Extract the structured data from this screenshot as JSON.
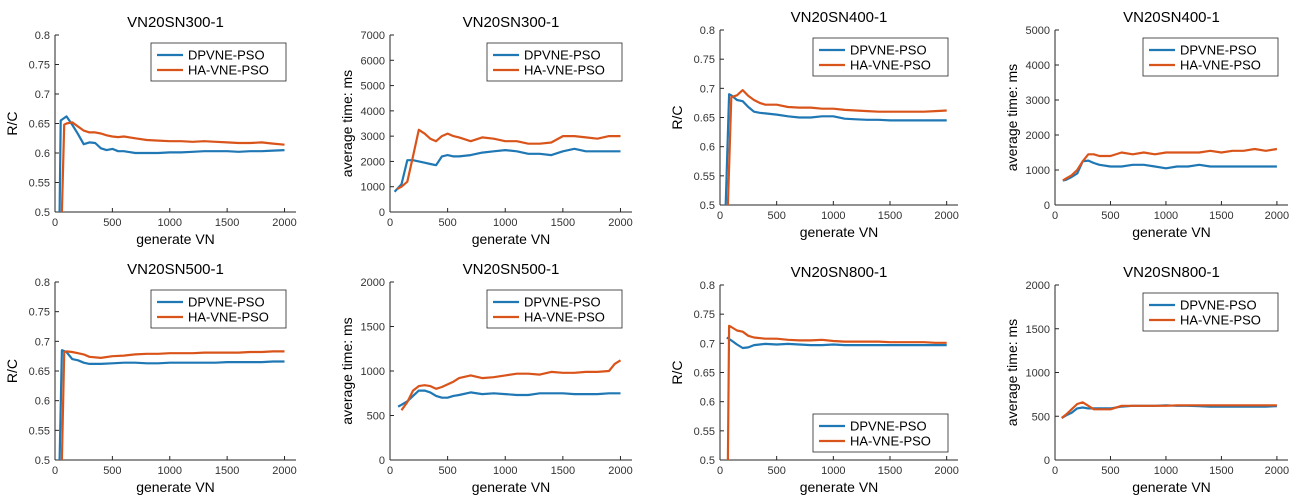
{
  "colors": {
    "DPVNE-PSO": "#1f77b4",
    "HA-VNE-PSO": "#d9541a"
  },
  "chart_data": [
    {
      "type": "line",
      "title": "VN20SN300-1",
      "xlabel": "generate VN",
      "ylabel": "R/C",
      "xlim": [
        0,
        2100
      ],
      "ylim": [
        0.5,
        0.8
      ],
      "xticks": [
        0,
        500,
        1000,
        1500,
        2000
      ],
      "yticks": [
        0.5,
        0.55,
        0.6,
        0.65,
        0.7,
        0.75,
        0.8
      ],
      "legend": "top-right",
      "series": [
        {
          "name": "DPVNE-PSO",
          "x": [
            40,
            50,
            100,
            150,
            200,
            250,
            300,
            350,
            400,
            450,
            500,
            550,
            600,
            700,
            800,
            900,
            1000,
            1100,
            1200,
            1300,
            1400,
            1500,
            1600,
            1700,
            1800,
            1900,
            2000
          ],
          "y": [
            0.5,
            0.655,
            0.662,
            0.648,
            0.632,
            0.615,
            0.618,
            0.617,
            0.608,
            0.605,
            0.607,
            0.603,
            0.603,
            0.6,
            0.6,
            0.6,
            0.601,
            0.601,
            0.602,
            0.603,
            0.603,
            0.603,
            0.602,
            0.603,
            0.603,
            0.604,
            0.605
          ]
        },
        {
          "name": "HA-VNE-PSO",
          "x": [
            60,
            80,
            100,
            150,
            200,
            250,
            300,
            350,
            400,
            450,
            500,
            550,
            600,
            700,
            800,
            900,
            1000,
            1100,
            1200,
            1300,
            1400,
            1500,
            1600,
            1700,
            1800,
            1900,
            2000
          ],
          "y": [
            0.5,
            0.648,
            0.65,
            0.652,
            0.645,
            0.638,
            0.635,
            0.635,
            0.633,
            0.63,
            0.628,
            0.627,
            0.628,
            0.625,
            0.622,
            0.621,
            0.62,
            0.62,
            0.619,
            0.62,
            0.619,
            0.618,
            0.617,
            0.617,
            0.618,
            0.616,
            0.614
          ]
        }
      ]
    },
    {
      "type": "line",
      "title": "VN20SN300-1",
      "xlabel": "generate VN",
      "ylabel": "average time: ms",
      "xlim": [
        0,
        2100
      ],
      "ylim": [
        0,
        7000
      ],
      "xticks": [
        0,
        500,
        1000,
        1500,
        2000
      ],
      "yticks": [
        0,
        1000,
        2000,
        3000,
        4000,
        5000,
        6000,
        7000
      ],
      "legend": "top-right",
      "series": [
        {
          "name": "DPVNE-PSO",
          "x": [
            40,
            100,
            150,
            200,
            250,
            300,
            350,
            400,
            450,
            500,
            550,
            600,
            700,
            800,
            900,
            1000,
            1100,
            1200,
            1300,
            1400,
            1500,
            1600,
            1700,
            1800,
            1900,
            2000
          ],
          "y": [
            800,
            1100,
            2050,
            2050,
            2000,
            1950,
            1900,
            1850,
            2200,
            2250,
            2200,
            2200,
            2250,
            2350,
            2400,
            2450,
            2400,
            2300,
            2300,
            2250,
            2400,
            2500,
            2400,
            2400,
            2400,
            2400
          ]
        },
        {
          "name": "HA-VNE-PSO",
          "x": [
            60,
            100,
            150,
            200,
            250,
            300,
            350,
            400,
            450,
            500,
            550,
            600,
            700,
            800,
            900,
            1000,
            1100,
            1200,
            1300,
            1400,
            1500,
            1600,
            1700,
            1800,
            1900,
            2000
          ],
          "y": [
            900,
            1000,
            1200,
            2200,
            3250,
            3100,
            2900,
            2800,
            3000,
            3100,
            3000,
            2950,
            2800,
            2950,
            2900,
            2800,
            2800,
            2700,
            2700,
            2750,
            3000,
            3000,
            2950,
            2900,
            3000,
            3000
          ]
        }
      ]
    },
    {
      "type": "line",
      "title": "VN20SN400-1",
      "xlabel": "generate VN",
      "ylabel": "R/C",
      "xlim": [
        0,
        2100
      ],
      "ylim": [
        0.5,
        0.8
      ],
      "xticks": [
        0,
        500,
        1000,
        1500,
        2000
      ],
      "yticks": [
        0.5,
        0.55,
        0.6,
        0.65,
        0.7,
        0.75,
        0.8
      ],
      "legend": "top-right",
      "series": [
        {
          "name": "DPVNE-PSO",
          "x": [
            50,
            80,
            100,
            150,
            200,
            250,
            300,
            350,
            400,
            500,
            600,
            700,
            800,
            900,
            1000,
            1100,
            1200,
            1300,
            1400,
            1500,
            1600,
            1700,
            1800,
            1900,
            2000
          ],
          "y": [
            0.5,
            0.69,
            0.688,
            0.68,
            0.678,
            0.668,
            0.66,
            0.658,
            0.657,
            0.655,
            0.652,
            0.65,
            0.65,
            0.652,
            0.652,
            0.648,
            0.647,
            0.646,
            0.646,
            0.645,
            0.645,
            0.645,
            0.645,
            0.645,
            0.645
          ]
        },
        {
          "name": "HA-VNE-PSO",
          "x": [
            70,
            100,
            150,
            200,
            250,
            300,
            350,
            400,
            500,
            600,
            700,
            800,
            900,
            1000,
            1100,
            1200,
            1300,
            1400,
            1500,
            1600,
            1700,
            1800,
            1900,
            2000
          ],
          "y": [
            0.5,
            0.685,
            0.688,
            0.697,
            0.687,
            0.68,
            0.675,
            0.672,
            0.672,
            0.668,
            0.667,
            0.667,
            0.665,
            0.665,
            0.663,
            0.662,
            0.661,
            0.66,
            0.66,
            0.66,
            0.66,
            0.66,
            0.661,
            0.662
          ]
        }
      ]
    },
    {
      "type": "line",
      "title": "VN20SN400-1",
      "xlabel": "generate VN",
      "ylabel": "average time: ms",
      "xlim": [
        0,
        2100
      ],
      "ylim": [
        0,
        5000
      ],
      "xticks": [
        0,
        500,
        1000,
        1500,
        2000
      ],
      "yticks": [
        0,
        1000,
        2000,
        3000,
        4000,
        5000
      ],
      "legend": "top-right",
      "series": [
        {
          "name": "DPVNE-PSO",
          "x": [
            70,
            100,
            150,
            200,
            250,
            300,
            350,
            400,
            500,
            600,
            700,
            800,
            900,
            1000,
            1100,
            1200,
            1300,
            1400,
            1500,
            1600,
            1700,
            1800,
            1900,
            2000
          ],
          "y": [
            700,
            720,
            800,
            900,
            1250,
            1270,
            1200,
            1150,
            1100,
            1100,
            1150,
            1150,
            1100,
            1050,
            1100,
            1100,
            1150,
            1100,
            1100,
            1100,
            1100,
            1100,
            1100,
            1100
          ]
        },
        {
          "name": "HA-VNE-PSO",
          "x": [
            70,
            100,
            150,
            200,
            250,
            300,
            350,
            400,
            500,
            600,
            700,
            800,
            900,
            1000,
            1100,
            1200,
            1300,
            1400,
            1500,
            1600,
            1700,
            1800,
            1900,
            2000
          ],
          "y": [
            700,
            760,
            850,
            1000,
            1250,
            1450,
            1450,
            1400,
            1400,
            1500,
            1450,
            1500,
            1450,
            1500,
            1500,
            1500,
            1500,
            1550,
            1500,
            1550,
            1550,
            1600,
            1550,
            1600
          ]
        }
      ]
    },
    {
      "type": "line",
      "title": "VN20SN500-1",
      "xlabel": "generate VN",
      "ylabel": "R/C",
      "xlim": [
        0,
        2100
      ],
      "ylim": [
        0.5,
        0.8
      ],
      "xticks": [
        0,
        500,
        1000,
        1500,
        2000
      ],
      "yticks": [
        0.5,
        0.55,
        0.6,
        0.65,
        0.7,
        0.75,
        0.8
      ],
      "legend": "top-right",
      "series": [
        {
          "name": "DPVNE-PSO",
          "x": [
            40,
            60,
            100,
            150,
            200,
            250,
            300,
            400,
            500,
            600,
            700,
            800,
            900,
            1000,
            1100,
            1200,
            1300,
            1400,
            1500,
            1600,
            1700,
            1800,
            1900,
            2000
          ],
          "y": [
            0.5,
            0.685,
            0.682,
            0.67,
            0.668,
            0.664,
            0.662,
            0.662,
            0.663,
            0.664,
            0.664,
            0.663,
            0.663,
            0.664,
            0.664,
            0.664,
            0.664,
            0.664,
            0.665,
            0.665,
            0.665,
            0.665,
            0.666,
            0.666
          ]
        },
        {
          "name": "HA-VNE-PSO",
          "x": [
            60,
            80,
            100,
            150,
            200,
            250,
            300,
            400,
            500,
            600,
            700,
            800,
            900,
            1000,
            1100,
            1200,
            1300,
            1400,
            1500,
            1600,
            1700,
            1800,
            1900,
            2000
          ],
          "y": [
            0.5,
            0.682,
            0.683,
            0.682,
            0.68,
            0.678,
            0.674,
            0.672,
            0.675,
            0.676,
            0.678,
            0.679,
            0.679,
            0.68,
            0.68,
            0.68,
            0.681,
            0.681,
            0.681,
            0.681,
            0.682,
            0.682,
            0.683,
            0.683
          ]
        }
      ]
    },
    {
      "type": "line",
      "title": "VN20SN500-1",
      "xlabel": "generate VN",
      "ylabel": "average time: ms",
      "xlim": [
        0,
        2100
      ],
      "ylim": [
        0,
        2000
      ],
      "xticks": [
        0,
        500,
        1000,
        1500,
        2000
      ],
      "yticks": [
        0,
        500,
        1000,
        1500,
        2000
      ],
      "legend": "top-right",
      "series": [
        {
          "name": "DPVNE-PSO",
          "x": [
            70,
            100,
            150,
            200,
            250,
            300,
            350,
            400,
            450,
            500,
            550,
            600,
            700,
            800,
            900,
            1000,
            1100,
            1200,
            1300,
            1400,
            1500,
            1600,
            1700,
            1800,
            1900,
            2000
          ],
          "y": [
            600,
            620,
            660,
            720,
            780,
            780,
            760,
            720,
            700,
            700,
            720,
            730,
            760,
            740,
            750,
            740,
            730,
            730,
            750,
            750,
            750,
            740,
            740,
            740,
            750,
            750
          ]
        },
        {
          "name": "HA-VNE-PSO",
          "x": [
            100,
            150,
            200,
            250,
            300,
            350,
            400,
            450,
            500,
            550,
            600,
            700,
            800,
            900,
            1000,
            1100,
            1200,
            1300,
            1400,
            1500,
            1600,
            1700,
            1800,
            1900,
            1950,
            2000
          ],
          "y": [
            560,
            650,
            780,
            830,
            840,
            830,
            800,
            820,
            850,
            880,
            920,
            950,
            920,
            930,
            950,
            970,
            970,
            960,
            990,
            980,
            980,
            990,
            990,
            1000,
            1080,
            1120
          ]
        }
      ]
    },
    {
      "type": "line",
      "title": "VN20SN800-1",
      "xlabel": "generate VN",
      "ylabel": "R/C",
      "xlim": [
        0,
        2100
      ],
      "ylim": [
        0.5,
        0.8
      ],
      "xticks": [
        0,
        500,
        1000,
        1500,
        2000
      ],
      "yticks": [
        0.5,
        0.55,
        0.6,
        0.65,
        0.7,
        0.75,
        0.8
      ],
      "legend": "bottom-right",
      "series": [
        {
          "name": "DPVNE-PSO",
          "x": [
            60,
            100,
            150,
            200,
            250,
            300,
            350,
            400,
            500,
            600,
            700,
            800,
            900,
            1000,
            1100,
            1200,
            1300,
            1400,
            1500,
            1600,
            1700,
            1800,
            1900,
            2000
          ],
          "y": [
            0.71,
            0.705,
            0.698,
            0.692,
            0.693,
            0.697,
            0.698,
            0.699,
            0.698,
            0.699,
            0.698,
            0.697,
            0.697,
            0.698,
            0.697,
            0.697,
            0.697,
            0.697,
            0.697,
            0.697,
            0.697,
            0.697,
            0.697,
            0.697
          ]
        },
        {
          "name": "HA-VNE-PSO",
          "x": [
            70,
            80,
            100,
            150,
            200,
            250,
            300,
            400,
            500,
            600,
            700,
            800,
            900,
            1000,
            1100,
            1200,
            1300,
            1400,
            1500,
            1600,
            1700,
            1800,
            1900,
            2000
          ],
          "y": [
            0.5,
            0.73,
            0.728,
            0.722,
            0.72,
            0.713,
            0.71,
            0.708,
            0.708,
            0.706,
            0.705,
            0.705,
            0.706,
            0.704,
            0.703,
            0.703,
            0.703,
            0.703,
            0.702,
            0.702,
            0.702,
            0.702,
            0.701,
            0.701
          ]
        }
      ]
    },
    {
      "type": "line",
      "title": "VN20SN800-1",
      "xlabel": "generate VN",
      "ylabel": "average time: ms",
      "xlim": [
        0,
        2100
      ],
      "ylim": [
        0,
        2000
      ],
      "xticks": [
        0,
        500,
        1000,
        1500,
        2000
      ],
      "yticks": [
        0,
        500,
        1000,
        1500,
        2000
      ],
      "legend": "top-right",
      "series": [
        {
          "name": "DPVNE-PSO",
          "x": [
            60,
            100,
            150,
            200,
            250,
            300,
            350,
            400,
            500,
            600,
            700,
            800,
            900,
            1000,
            1100,
            1200,
            1300,
            1400,
            1500,
            1600,
            1700,
            1800,
            1900,
            2000
          ],
          "y": [
            480,
            510,
            540,
            590,
            600,
            590,
            590,
            590,
            590,
            610,
            620,
            620,
            620,
            625,
            620,
            620,
            615,
            610,
            610,
            610,
            610,
            610,
            610,
            615
          ]
        },
        {
          "name": "HA-VNE-PSO",
          "x": [
            60,
            100,
            150,
            200,
            250,
            300,
            350,
            400,
            500,
            600,
            700,
            800,
            900,
            1000,
            1100,
            1200,
            1300,
            1400,
            1500,
            1600,
            1700,
            1800,
            1900,
            2000
          ],
          "y": [
            480,
            520,
            580,
            640,
            660,
            620,
            580,
            580,
            580,
            620,
            620,
            620,
            620,
            620,
            625,
            625,
            625,
            625,
            625,
            625,
            625,
            625,
            625,
            625
          ]
        }
      ]
    }
  ]
}
